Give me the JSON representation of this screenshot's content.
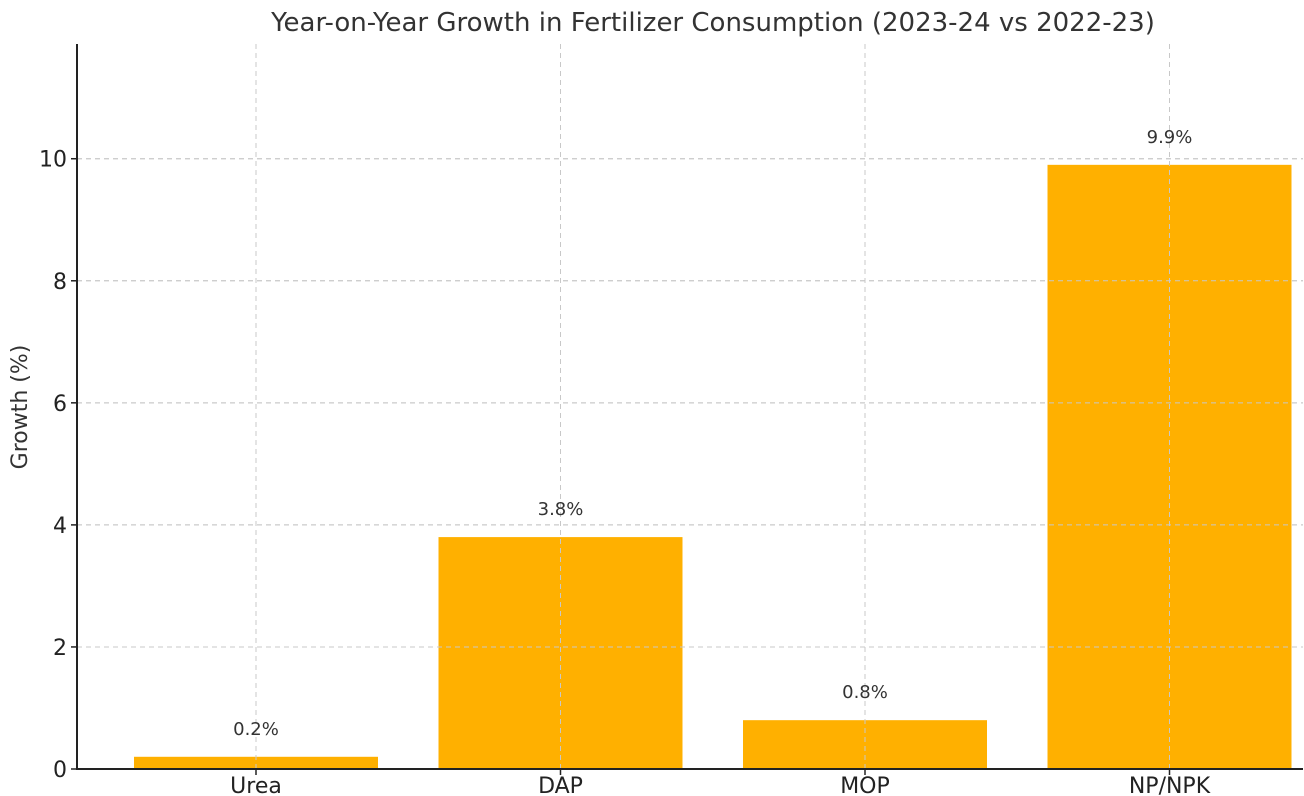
{
  "chart_data": {
    "type": "bar",
    "title": "Year-on-Year Growth in Fertilizer Consumption (2023-24 vs 2022-23)",
    "xlabel": "",
    "ylabel": "Growth (%)",
    "categories": [
      "Urea",
      "DAP",
      "MOP",
      "NP/NPK"
    ],
    "values": [
      0.2,
      3.8,
      0.8,
      9.9
    ],
    "data_labels": [
      "0.2%",
      "3.8%",
      "0.8%",
      "9.9%"
    ],
    "ylim": [
      0,
      11.88
    ],
    "yticks": [
      0,
      2,
      4,
      6,
      8,
      10
    ],
    "ytick_labels": [
      "0",
      "2",
      "4",
      "6",
      "8",
      "10"
    ],
    "grid": true,
    "bar_color": "#FFB000"
  }
}
